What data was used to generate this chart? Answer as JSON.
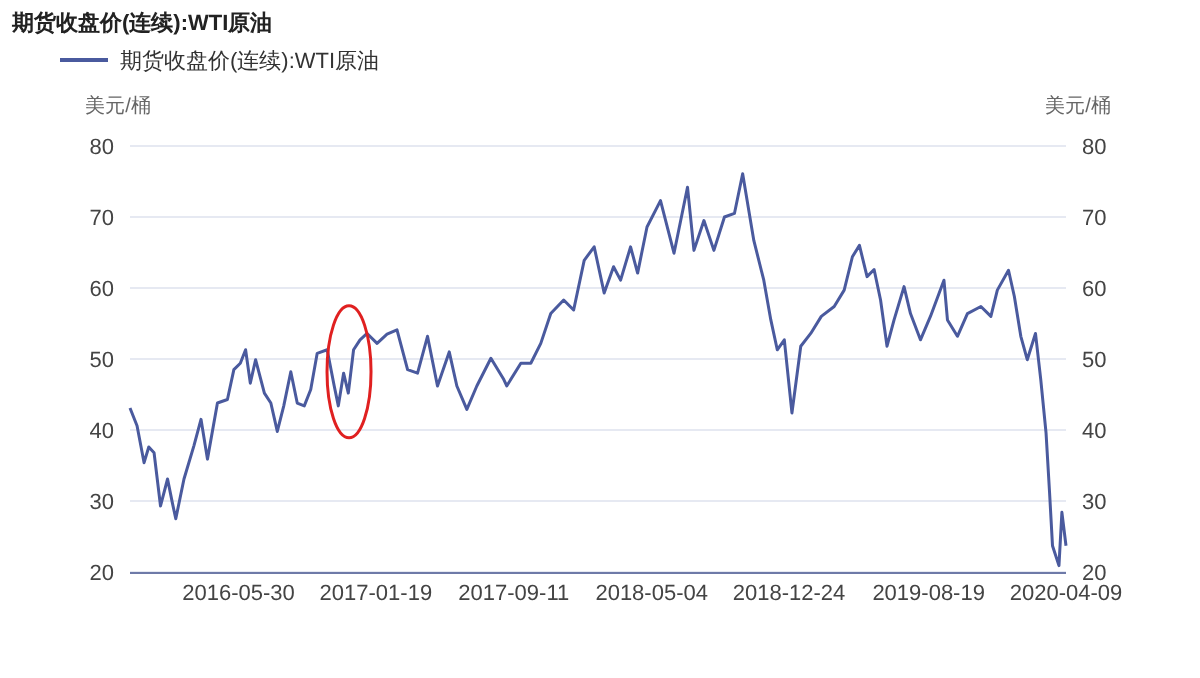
{
  "chart_data": {
    "type": "line",
    "title": "期货收盘价(连续):WTI原油",
    "ylabel": "美元/桶",
    "y2label": "美元/桶",
    "x": [
      "2015-11-27",
      "2015-12-09",
      "2015-12-21",
      "2015-12-29",
      "2016-01-07",
      "2016-01-18",
      "2016-01-30",
      "2016-02-07",
      "2016-02-13",
      "2016-02-27",
      "2016-03-15",
      "2016-03-27",
      "2016-04-07",
      "2016-04-24",
      "2016-05-11",
      "2016-05-22",
      "2016-06-02",
      "2016-06-11",
      "2016-06-19",
      "2016-06-28",
      "2016-07-13",
      "2016-07-24",
      "2016-08-04",
      "2016-08-15",
      "2016-08-27",
      "2016-09-07",
      "2016-09-19",
      "2016-09-30",
      "2016-10-11",
      "2016-10-28",
      "2016-11-09",
      "2016-11-16",
      "2016-11-25",
      "2016-12-03",
      "2016-12-12",
      "2016-12-23",
      "2017-01-04",
      "2017-01-21",
      "2017-02-07",
      "2017-02-24",
      "2017-03-14",
      "2017-03-31",
      "2017-04-17",
      "2017-05-04",
      "2017-05-24",
      "2017-06-06",
      "2017-06-23",
      "2017-07-10",
      "2017-08-03",
      "2017-08-25",
      "2017-08-30",
      "2017-09-23",
      "2017-10-10",
      "2017-10-27",
      "2017-11-13",
      "2017-12-05",
      "2017-12-22",
      "2018-01-09",
      "2018-01-26",
      "2018-02-12",
      "2018-02-28",
      "2018-03-12",
      "2018-03-29",
      "2018-04-10",
      "2018-04-26",
      "2018-05-19",
      "2018-06-11",
      "2018-07-04",
      "2018-07-15",
      "2018-08-01",
      "2018-08-18",
      "2018-09-05",
      "2018-09-22",
      "2018-10-06",
      "2018-10-25",
      "2018-11-11",
      "2018-11-23",
      "2018-12-04",
      "2018-12-16",
      "2018-12-29",
      "2019-01-13",
      "2019-01-30",
      "2019-02-17",
      "2019-03-11",
      "2019-03-28",
      "2019-04-11",
      "2019-04-23",
      "2019-05-06",
      "2019-05-18",
      "2019-05-29",
      "2019-06-09",
      "2019-06-21",
      "2019-07-08",
      "2019-07-19",
      "2019-08-05",
      "2019-08-22",
      "2019-09-14",
      "2019-09-20",
      "2019-10-07",
      "2019-10-24",
      "2019-11-16",
      "2019-12-03",
      "2019-12-14",
      "2020-01-02",
      "2020-01-12",
      "2020-01-23",
      "2020-02-03",
      "2020-02-17",
      "2020-02-26",
      "2020-03-06",
      "2020-03-12",
      "2020-03-17",
      "2020-03-28",
      "2020-04-02",
      "2020-04-09"
    ],
    "series": [
      {
        "name": "期货收盘价(连续):WTI原油",
        "color": "#4a5a9e",
        "values": [
          43.1,
          40.6,
          35.4,
          37.6,
          36.8,
          29.3,
          33.1,
          29.8,
          27.5,
          33.1,
          37.8,
          41.5,
          35.9,
          43.8,
          44.3,
          48.5,
          49.4,
          51.3,
          46.6,
          49.9,
          45.2,
          43.8,
          39.8,
          43.4,
          48.2,
          43.8,
          43.4,
          45.7,
          50.8,
          51.3,
          46.2,
          43.4,
          48.0,
          45.2,
          51.3,
          52.7,
          53.6,
          52.2,
          53.5,
          54.1,
          48.5,
          48.0,
          53.2,
          46.2,
          51.0,
          46.2,
          42.9,
          46.2,
          50.1,
          47.1,
          46.2,
          49.4,
          49.4,
          52.2,
          56.4,
          58.3,
          56.9,
          63.9,
          65.8,
          59.3,
          63.0,
          61.1,
          65.8,
          62.1,
          68.6,
          72.3,
          64.9,
          74.2,
          65.3,
          69.5,
          65.3,
          70.0,
          70.5,
          76.1,
          66.7,
          61.1,
          55.5,
          51.3,
          52.7,
          42.4,
          51.8,
          53.6,
          56.0,
          57.4,
          59.7,
          64.4,
          66.0,
          61.6,
          62.6,
          58.3,
          51.8,
          55.5,
          60.2,
          56.4,
          52.7,
          56.0,
          61.1,
          55.5,
          53.2,
          56.4,
          57.4,
          56.0,
          59.7,
          62.5,
          58.8,
          53.2,
          49.9,
          53.6,
          47.1,
          39.6,
          31.2,
          23.7,
          20.9,
          28.4,
          23.7
        ]
      }
    ],
    "xlim": [
      "2015-11-27",
      "2020-04-09"
    ],
    "xticks": [
      "2016-05-30",
      "2017-01-19",
      "2017-09-11",
      "2018-05-04",
      "2018-12-24",
      "2019-08-19",
      "2020-04-09"
    ],
    "ylim": [
      20,
      80
    ],
    "yticks": [
      20,
      30,
      40,
      50,
      60,
      70,
      80
    ],
    "y2lim": [
      20,
      80
    ],
    "y2ticks": [
      20,
      30,
      40,
      50,
      60,
      70,
      80
    ],
    "grid": "y",
    "legend": "top left"
  }
}
